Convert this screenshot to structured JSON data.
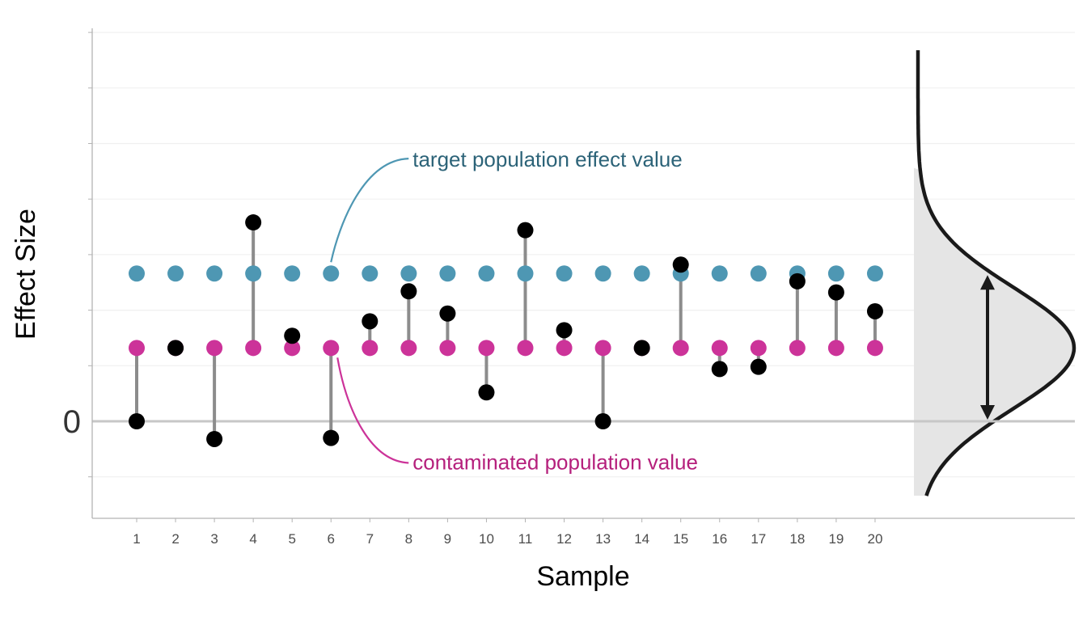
{
  "chart_data": {
    "type": "scatter",
    "title": "",
    "xlabel": "Sample",
    "ylabel": "Effect Size",
    "x_ticks": [
      "1",
      "2",
      "3",
      "4",
      "5",
      "6",
      "7",
      "8",
      "9",
      "10",
      "11",
      "12",
      "13",
      "14",
      "15",
      "16",
      "17",
      "18",
      "19",
      "20"
    ],
    "y_tick_labels": [
      {
        "value": 0,
        "label": "0"
      }
    ],
    "ylim": [
      -0.59,
      4.13
    ],
    "gridlines_y": [
      -0.5,
      0,
      0.5,
      1,
      1.5,
      2,
      2.5,
      3,
      3.5
    ],
    "grid": true,
    "target_value": 1.33,
    "contaminated_value": 0.66,
    "samples": [
      {
        "x": 1,
        "y": 0.0
      },
      {
        "x": 2,
        "y": 0.66
      },
      {
        "x": 3,
        "y": -0.16
      },
      {
        "x": 4,
        "y": 1.79
      },
      {
        "x": 5,
        "y": 0.77
      },
      {
        "x": 6,
        "y": -0.15
      },
      {
        "x": 7,
        "y": 0.9
      },
      {
        "x": 8,
        "y": 1.17
      },
      {
        "x": 9,
        "y": 0.97
      },
      {
        "x": 10,
        "y": 0.26
      },
      {
        "x": 11,
        "y": 1.72
      },
      {
        "x": 12,
        "y": 0.82
      },
      {
        "x": 13,
        "y": 0.0
      },
      {
        "x": 14,
        "y": 0.66
      },
      {
        "x": 15,
        "y": 1.41
      },
      {
        "x": 16,
        "y": 0.47
      },
      {
        "x": 17,
        "y": 0.49
      },
      {
        "x": 18,
        "y": 1.26
      },
      {
        "x": 19,
        "y": 1.16
      },
      {
        "x": 20,
        "y": 0.99
      }
    ],
    "annotations": {
      "target_label": "target population effect value",
      "contaminated_label": "contaminated population value"
    },
    "density": {
      "description_in_data_units": true,
      "mean": 0.66,
      "sd": 0.55,
      "range": [
        -0.67,
        3.34
      ],
      "arrow_from": 1.33,
      "arrow_to": 0.0
    },
    "colors": {
      "target": "#4e97b3",
      "contaminated": "#cc3399",
      "sample": "#000000",
      "segment": "#8c8c8c",
      "target_text": "#2c6378",
      "contaminated_text": "#b5207c",
      "density_fill": "#e5e5e5",
      "density_line": "#1a1a1a"
    }
  }
}
